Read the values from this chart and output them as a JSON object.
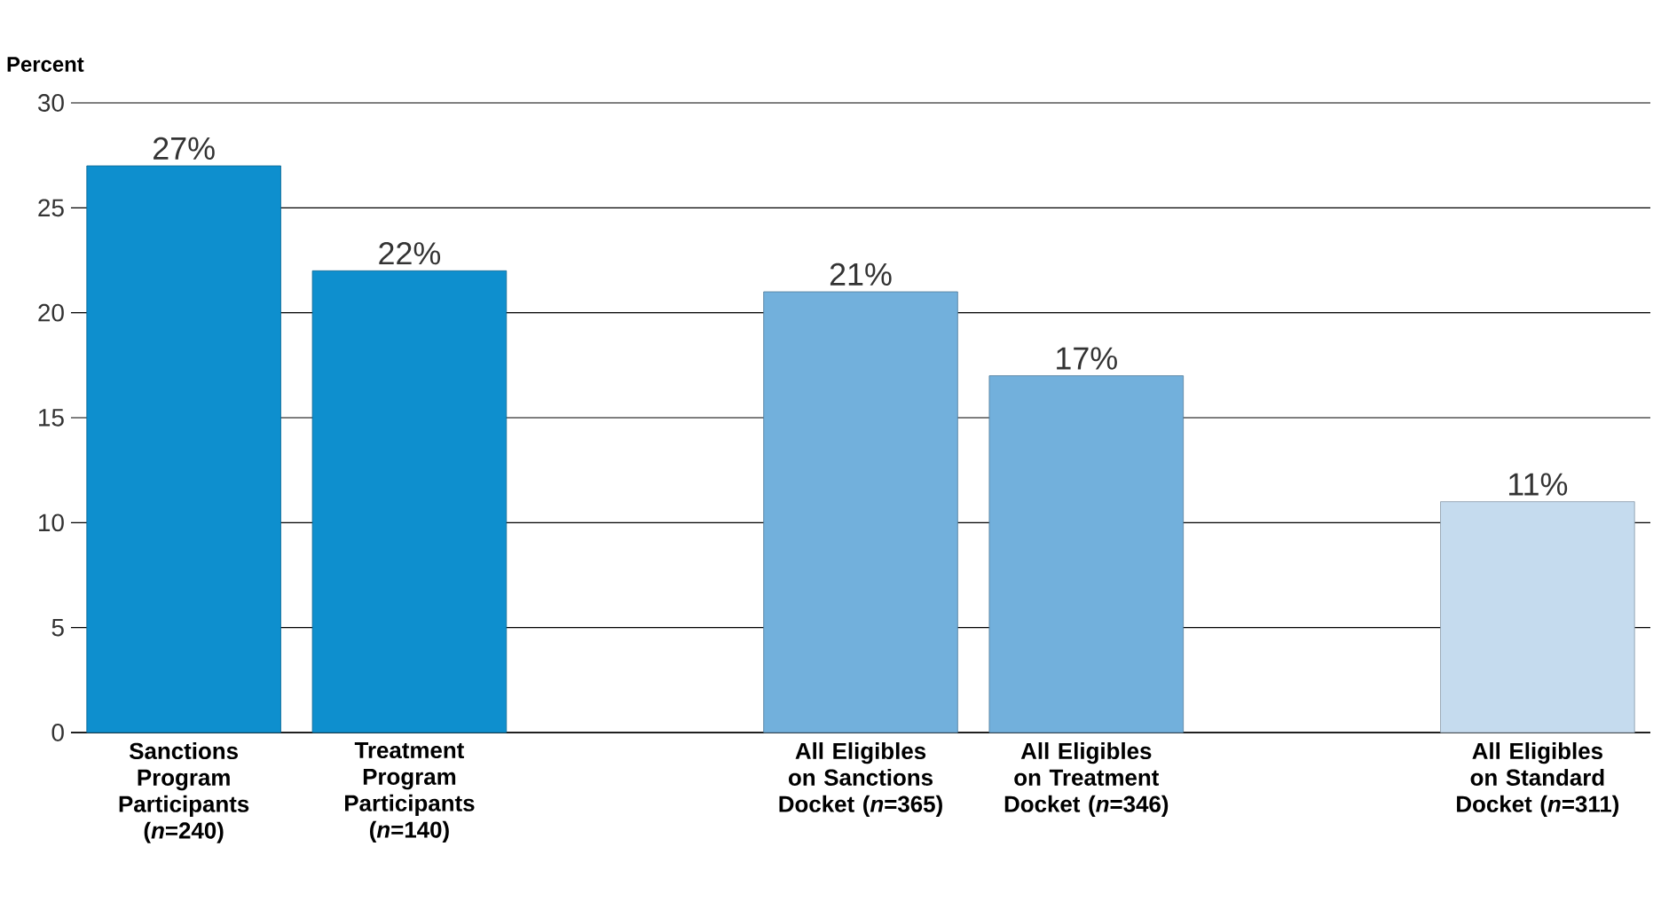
{
  "chart_data": {
    "type": "bar",
    "ylabel": "Percent",
    "categories": [
      "Sanctions Program Participants (*n*=240)",
      "Treatment Program Participants (*n*=140)",
      null,
      "All Eligibles on Sanctions Docket (*n*=365)",
      "All Eligibles on Treatment Docket (*n*=346)",
      null,
      "All Eligibles on Standard Docket (*n*=311)"
    ],
    "values": [
      27,
      22,
      null,
      21,
      17,
      null,
      11
    ],
    "value_labels": [
      "27%",
      "22%",
      null,
      "21%",
      "17%",
      null,
      "11%"
    ],
    "colors": [
      "#0e8fce",
      "#0e8fce",
      null,
      "#72b0dc",
      "#72b0dc",
      null,
      "#c5dbee"
    ],
    "ylim": [
      0,
      30
    ],
    "yticks": [
      0,
      5,
      10,
      15,
      20,
      25,
      30
    ],
    "grid": "y"
  }
}
